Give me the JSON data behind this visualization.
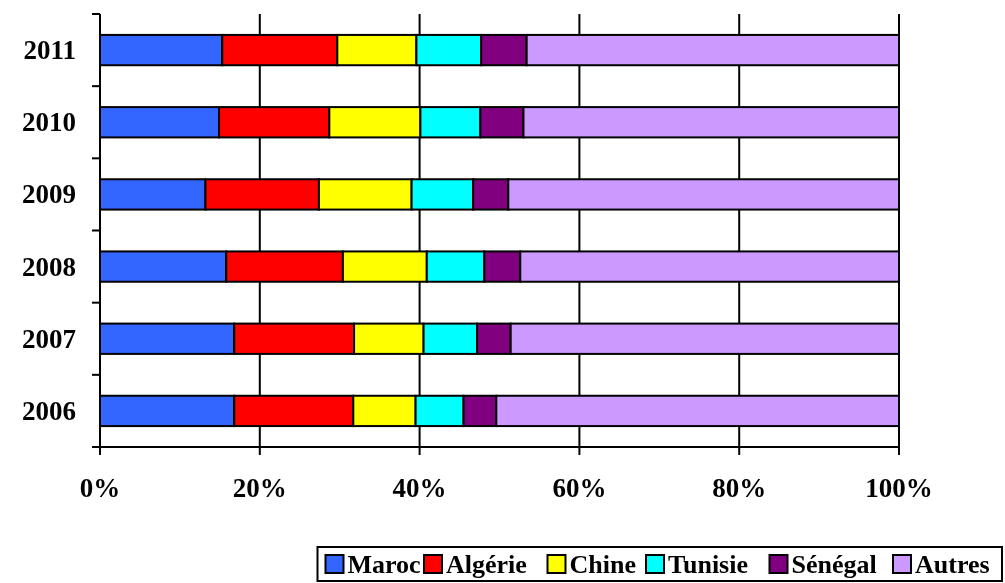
{
  "chart_data": {
    "type": "bar",
    "orientation": "horizontal",
    "stacked": true,
    "categories": [
      "2011",
      "2010",
      "2009",
      "2008",
      "2007",
      "2006"
    ],
    "series": [
      {
        "name": "Maroc",
        "color": "#3366ff",
        "values": [
          15.3,
          14.9,
          13.2,
          15.8,
          16.8,
          16.8
        ]
      },
      {
        "name": "Algérie",
        "color": "#ff0000",
        "values": [
          14.4,
          13.8,
          14.2,
          14.6,
          15.0,
          14.9
        ]
      },
      {
        "name": "Chine",
        "color": "#ffff00",
        "values": [
          9.9,
          11.4,
          11.6,
          10.5,
          8.7,
          7.8
        ]
      },
      {
        "name": "Tunisie",
        "color": "#00ffff",
        "values": [
          8.1,
          7.5,
          7.7,
          7.2,
          6.7,
          6.0
        ]
      },
      {
        "name": "Sénégal",
        "color": "#800080",
        "values": [
          5.7,
          5.4,
          4.4,
          4.5,
          4.2,
          4.1
        ]
      },
      {
        "name": "Autres",
        "color": "#cc99ff",
        "values": [
          46.6,
          47.0,
          48.9,
          47.4,
          48.6,
          50.4
        ]
      }
    ],
    "xlim": [
      0,
      100
    ],
    "xticks": [
      {
        "value": 0,
        "label": "0%"
      },
      {
        "value": 20,
        "label": "20%"
      },
      {
        "value": 40,
        "label": "40%"
      },
      {
        "value": 60,
        "label": "60%"
      },
      {
        "value": 80,
        "label": "80%"
      },
      {
        "value": 100,
        "label": "100%"
      }
    ],
    "grid": "x",
    "legend": "bottom"
  }
}
